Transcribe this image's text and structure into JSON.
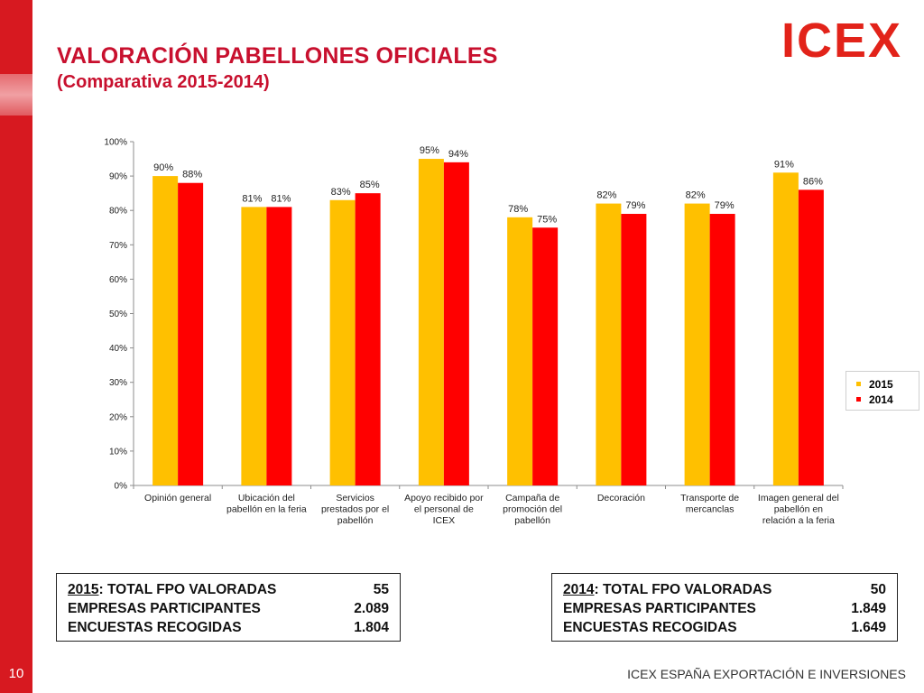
{
  "slide": {
    "title": "VALORACIÓN PABELLONES OFICIALES",
    "subtitle": "(Comparativa 2015-2014)",
    "page_number": "10",
    "footer": "ICEX ESPAÑA EXPORTACIÓN E INVERSIONES",
    "logo_text": "ICEX",
    "accent_color": "#c8102e",
    "logo_color": "#e2231a"
  },
  "chart_data": {
    "type": "bar",
    "categories": [
      [
        "Opinión general"
      ],
      [
        "Ubicación del",
        "pabellón en la feria"
      ],
      [
        "Servicios",
        "prestados por el",
        "pabellón"
      ],
      [
        "Apoyo recibido por",
        "el personal de",
        "ICEX"
      ],
      [
        "Campaña de",
        "promoción del",
        "pabellón"
      ],
      [
        "Decoración"
      ],
      [
        "Transporte de",
        "mercanclas"
      ],
      [
        "Imagen general del",
        "pabellón en",
        "relación a la feria"
      ]
    ],
    "series": [
      {
        "name": "2015",
        "color": "#ffc000",
        "values": [
          90,
          81,
          83,
          95,
          78,
          82,
          82,
          91
        ],
        "labels": [
          "90%",
          "81%",
          "83%",
          "95%",
          "78%",
          "82%",
          "82%",
          "91%"
        ]
      },
      {
        "name": "2014",
        "color": "#ff0000",
        "values": [
          88,
          81,
          85,
          94,
          75,
          79,
          79,
          86
        ],
        "labels": [
          "88%",
          "81%",
          "85%",
          "94%",
          "75%",
          "79%",
          "79%",
          "86%"
        ]
      }
    ],
    "y_ticks": [
      "0%",
      "10%",
      "20%",
      "30%",
      "40%",
      "50%",
      "60%",
      "70%",
      "80%",
      "90%",
      "100%"
    ],
    "ylim": [
      0,
      100
    ],
    "grid": false,
    "legend_position": "right"
  },
  "summary_2015": {
    "year": "2015",
    "rows": [
      {
        "label": ": TOTAL FPO VALORADAS",
        "value": "55"
      },
      {
        "label": "EMPRESAS PARTICIPANTES",
        "value": "2.089"
      },
      {
        "label": "ENCUESTAS RECOGIDAS",
        "value": "1.804"
      }
    ]
  },
  "summary_2014": {
    "year": "2014",
    "rows": [
      {
        "label": ": TOTAL FPO VALORADAS",
        "value": "50"
      },
      {
        "label": "EMPRESAS PARTICIPANTES",
        "value": "1.849"
      },
      {
        "label": "ENCUESTAS RECOGIDAS",
        "value": "1.649"
      }
    ]
  }
}
